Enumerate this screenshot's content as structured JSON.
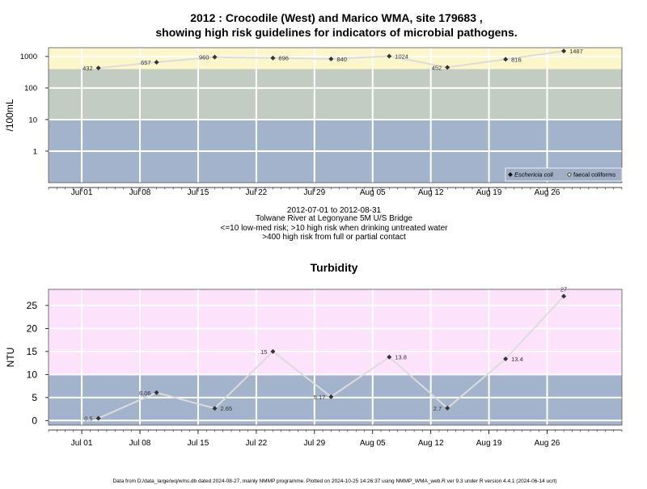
{
  "page": {
    "title_line1": "2012 : Crocodile (West) and Marico WMA, site 179683 ,",
    "title_line2": "showing high risk guidelines for indicators of microbial pathogens.",
    "caption_lines": [
      "2012-07-01 to 2012-08-31",
      "Tolwane River at Legonyane 5M U/S Bridge",
      "<=10 low-med risk; >10 high risk when drinking untreated water",
      ">400 high risk from full or partial contact"
    ],
    "turbidity_title": "Turbidity",
    "footer": "Data from D:/data_large/wq/wms.db dated 2024-08-27, mainly NMMP programme. Plotted on 2024-10-25 14:26:37 using NMMP_WMA_web.R ver 9.3 under R version 4.4.1 (2024-06-14 ucrt)"
  },
  "colors": {
    "band_blue": "#a3b3cb",
    "band_green": "#c3ccc2",
    "band_yellow": "#fcf6cb",
    "band_pink": "#fde2fb",
    "grid": "#ffffff",
    "line": "#dcdcdc",
    "point": "#333333"
  },
  "chart_data": [
    {
      "type": "line",
      "ylabel": "/100mL",
      "yscale": "log",
      "ylim": [
        0.1,
        1900
      ],
      "yticks": [
        1,
        10,
        100,
        1000
      ],
      "ytick_labels": [
        "1",
        "10",
        "100",
        "1000"
      ],
      "xlim": [
        "2012-06-27",
        "2012-09-04"
      ],
      "xticks": [
        "2012-07-01",
        "2012-07-08",
        "2012-07-15",
        "2012-07-22",
        "2012-07-29",
        "2012-08-05",
        "2012-08-12",
        "2012-08-19",
        "2012-08-26"
      ],
      "xtick_labels": [
        "Jul 01",
        "Jul 08",
        "Jul 15",
        "Jul 22",
        "Jul 29",
        "Aug 05",
        "Aug 12",
        "Aug 19",
        "Aug 26"
      ],
      "bands": [
        {
          "from": 0.1,
          "to": 10,
          "color": "band_blue"
        },
        {
          "from": 10,
          "to": 400,
          "color": "band_green"
        },
        {
          "from": 400,
          "to": 1900,
          "color": "band_yellow"
        }
      ],
      "series": [
        {
          "name": "Eschericia coli",
          "marker": "filled-diamond",
          "x": [
            "2012-07-03",
            "2012-07-10",
            "2012-07-17",
            "2012-07-24",
            "2012-07-31",
            "2012-08-07",
            "2012-08-14",
            "2012-08-21",
            "2012-08-28"
          ],
          "values": [
            432,
            657,
            960,
            896,
            840,
            1024,
            452,
            816,
            1487
          ],
          "labels": [
            "432",
            "657",
            "960",
            "896",
            "840",
            "1024",
            "452",
            "816",
            "1487"
          ],
          "label_side": [
            "left",
            "left",
            "left",
            "right",
            "right",
            "right",
            "left",
            "right",
            "right"
          ]
        }
      ],
      "legend": {
        "position": "bottom-right",
        "entries": [
          {
            "label": "Eschericia coli",
            "marker": "filled-diamond",
            "italic": true
          },
          {
            "label": "faecal coliforms",
            "marker": "open-diamond",
            "italic": false
          }
        ]
      },
      "grid": true
    },
    {
      "type": "line",
      "title": "Turbidity",
      "ylabel": "NTU",
      "ylim": [
        -1,
        28.5
      ],
      "yticks": [
        0,
        5,
        10,
        15,
        20,
        25
      ],
      "ytick_labels": [
        "0",
        "5",
        "10",
        "15",
        "20",
        "25"
      ],
      "xlim": [
        "2012-06-27",
        "2012-09-04"
      ],
      "xticks": [
        "2012-07-01",
        "2012-07-08",
        "2012-07-15",
        "2012-07-22",
        "2012-07-29",
        "2012-08-05",
        "2012-08-12",
        "2012-08-19",
        "2012-08-26"
      ],
      "xtick_labels": [
        "Jul 01",
        "Jul 08",
        "Jul 15",
        "Jul 22",
        "Jul 29",
        "Aug 05",
        "Aug 12",
        "Aug 19",
        "Aug 26"
      ],
      "bands": [
        {
          "from": -1,
          "to": 10,
          "color": "band_blue"
        },
        {
          "from": 10,
          "to": 28.5,
          "color": "band_pink"
        }
      ],
      "series": [
        {
          "marker": "filled-diamond",
          "x": [
            "2012-07-03",
            "2012-07-10",
            "2012-07-17",
            "2012-07-24",
            "2012-07-31",
            "2012-08-07",
            "2012-08-14",
            "2012-08-21",
            "2012-08-28"
          ],
          "values": [
            0.5,
            6.06,
            2.65,
            15,
            5.17,
            13.8,
            2.7,
            13.4,
            27
          ],
          "labels": [
            "0.5",
            "6.06",
            "2.65",
            "15",
            "5.17",
            "13.8",
            "2.7",
            "13.4",
            "27"
          ],
          "label_side": [
            "left",
            "left",
            "right",
            "left",
            "left",
            "right",
            "left",
            "right",
            "top"
          ]
        }
      ],
      "grid": true
    }
  ]
}
